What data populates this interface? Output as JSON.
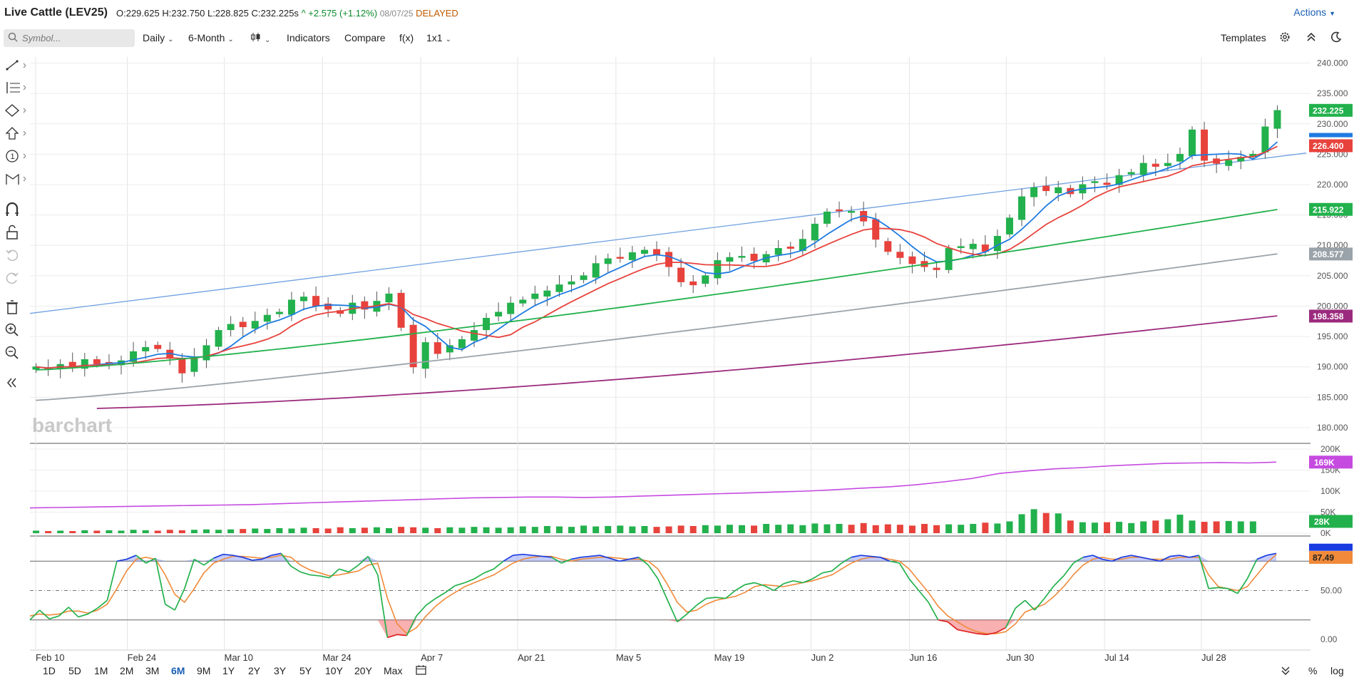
{
  "header": {
    "title": "Live Cattle (LEV25)",
    "open": "O:229.625",
    "high": "H:232.750",
    "low": "L:228.825",
    "close": "C:232.225s",
    "change": "^ +2.575 (+1.12%)",
    "date": "08/07/25",
    "status": "DELAYED",
    "actions_label": "Actions"
  },
  "toolbar": {
    "search_placeholder": "Symbol...",
    "interval": "Daily",
    "range": "6-Month",
    "indicators": "Indicators",
    "compare": "Compare",
    "fx": "f(x)",
    "layout": "1x1",
    "templates": "Templates"
  },
  "watermark": "barchart",
  "chart_data": {
    "type": "candlestick",
    "x_labels": [
      "Feb 10",
      "Feb 24",
      "Mar 10",
      "Mar 24",
      "Apr 7",
      "Apr 21",
      "May 5",
      "May 19",
      "Jun 2",
      "Jun 16",
      "Jun 30",
      "Jul 14",
      "Jul 28"
    ],
    "price_axis": [
      "240.000",
      "235.000",
      "230.000",
      "225.000",
      "220.000",
      "215.000",
      "210.000",
      "205.000",
      "200.000",
      "195.000",
      "190.000",
      "185.000",
      "180.000"
    ],
    "price_ylim": [
      178,
      241
    ],
    "price_labels": [
      {
        "value": "232.225",
        "color": "#22b14c"
      },
      {
        "value": "226.400",
        "color": "#e8423c"
      },
      {
        "value": "215.922",
        "color": "#22b14c"
      },
      {
        "value": "208.577",
        "color": "#9aa3aa"
      },
      {
        "value": "198.358",
        "color": "#9b2a7d"
      }
    ],
    "closes": [
      190,
      189.6,
      190.4,
      190,
      191.2,
      190.5,
      190.7,
      191.0,
      192.5,
      193.2,
      193.0,
      191.4,
      189.0,
      191.5,
      193.5,
      196.0,
      197.0,
      196.6,
      197.5,
      198.5,
      199.0,
      201.0,
      201.5,
      200.0,
      199.5,
      198.8,
      200.5,
      199.5,
      200.8,
      202.0,
      196.5,
      190.0,
      194.0,
      192.2,
      193.5,
      194.5,
      196.0,
      198.0,
      199.0,
      200.5,
      201.0,
      202.0,
      202.5,
      203.5,
      204.0,
      205.0,
      207.0,
      207.8,
      208.0,
      208.8,
      209.2,
      208.5,
      206.5,
      204.0,
      203.5,
      205.0,
      207.5,
      208.0,
      208.2,
      207.5,
      208.5,
      209.5,
      209.5,
      211.0,
      213.5,
      215.5,
      215.7,
      215.6,
      214.0,
      211.0,
      209.0,
      208.0,
      207.0,
      206.5,
      206.0,
      209.5,
      209.8,
      210.2,
      209.0,
      211.5,
      214.5,
      218.0,
      219.5,
      219.0,
      219.5,
      218.5,
      220.0,
      220.5,
      220.0,
      221.5,
      222.0,
      223.5,
      223.0,
      223.5,
      225.0,
      229.0,
      224.0,
      223.5,
      224.0,
      224.5,
      225.0,
      229.5,
      232.2
    ],
    "ma_values": {
      "ma9_blue": "227.800",
      "ma18_red": "226.400",
      "ma50_green": "215.922",
      "ma100_grey": "208.577",
      "ma200_purple": "198.358"
    },
    "volume": {
      "axis": [
        "200K",
        "150K",
        "100K",
        "50K",
        "0K"
      ],
      "ylim": [
        0,
        200
      ],
      "oi_label": "169K",
      "vol_label": "28K",
      "open_interest": [
        60,
        61,
        62,
        63,
        64,
        65,
        66,
        67,
        68,
        70,
        72,
        74,
        76,
        78,
        80,
        82,
        84,
        85,
        86,
        86,
        85,
        86,
        88,
        90,
        92,
        94,
        96,
        98,
        100,
        103,
        107,
        110,
        115,
        122,
        130,
        142,
        148,
        153,
        156,
        160,
        163,
        166,
        167,
        168,
        167,
        169
      ],
      "volumes": [
        6,
        5,
        6,
        5,
        7,
        6,
        7,
        6,
        8,
        7,
        6,
        8,
        7,
        8,
        9,
        8,
        9,
        10,
        11,
        10,
        12,
        11,
        13,
        12,
        11,
        14,
        12,
        13,
        14,
        12,
        15,
        14,
        13,
        12,
        14,
        13,
        15,
        14,
        13,
        14,
        16,
        15,
        17,
        16,
        15,
        18,
        16,
        17,
        18,
        16,
        17,
        15,
        16,
        18,
        17,
        19,
        18,
        20,
        19,
        18,
        22,
        20,
        21,
        19,
        23,
        21,
        22,
        20,
        24,
        19,
        21,
        20,
        18,
        22,
        19,
        21,
        20,
        22,
        25,
        23,
        28,
        45,
        57,
        48,
        47,
        30,
        26,
        25,
        26,
        27,
        24,
        28,
        30,
        33,
        44,
        30,
        27,
        28,
        29,
        28,
        28
      ]
    },
    "stochastic": {
      "axis": [
        "50.00",
        "0.00"
      ],
      "ylim": [
        -5,
        105
      ],
      "k_label": "88.43",
      "d_label": "87.49",
      "upper": 80,
      "lower": 20,
      "k": [
        20,
        30,
        21,
        24,
        33,
        23,
        26,
        32,
        40,
        80,
        82,
        86,
        78,
        83,
        36,
        30,
        52,
        82,
        76,
        83,
        87,
        86,
        84,
        81,
        82,
        86,
        88,
        75,
        69,
        66,
        65,
        63,
        72,
        69,
        76,
        85,
        66,
        2,
        5,
        4,
        24,
        35,
        42,
        48,
        55,
        58,
        62,
        68,
        72,
        80,
        86,
        87,
        86,
        85,
        84,
        78,
        82,
        84,
        85,
        86,
        83,
        80,
        82,
        84,
        76,
        62,
        40,
        18,
        26,
        35,
        42,
        43,
        42,
        50,
        56,
        58,
        55,
        50,
        57,
        60,
        58,
        62,
        68,
        70,
        78,
        84,
        86,
        85,
        84,
        80,
        78,
        62,
        50,
        38,
        20,
        18,
        10,
        8,
        6,
        5,
        7,
        12,
        32,
        40,
        30,
        42,
        55,
        65,
        78,
        84,
        86,
        82,
        80,
        84,
        86,
        84,
        82,
        80,
        85,
        86,
        84,
        86,
        52,
        53,
        52,
        47,
        62,
        82,
        86,
        88
      ],
      "d": [
        24,
        26,
        25,
        26,
        29,
        29,
        27,
        30,
        36,
        52,
        70,
        82,
        84,
        82,
        66,
        46,
        38,
        52,
        68,
        78,
        82,
        85,
        85,
        84,
        83,
        84,
        86,
        84,
        76,
        71,
        68,
        65,
        66,
        68,
        70,
        76,
        78,
        42,
        16,
        6,
        12,
        24,
        34,
        42,
        48,
        54,
        58,
        62,
        66,
        72,
        78,
        82,
        84,
        85,
        85,
        82,
        80,
        82,
        83,
        84,
        84,
        83,
        82,
        82,
        80,
        72,
        56,
        38,
        28,
        30,
        36,
        40,
        42,
        44,
        48,
        54,
        56,
        55,
        54,
        56,
        58,
        60,
        63,
        66,
        72,
        78,
        82,
        84,
        84,
        82,
        80,
        72,
        60,
        48,
        34,
        24,
        18,
        12,
        8,
        6,
        6,
        8,
        16,
        28,
        32,
        36,
        44,
        54,
        66,
        76,
        82,
        84,
        82,
        82,
        84,
        84,
        82,
        82,
        82,
        84,
        84,
        84,
        66,
        54,
        52,
        50,
        54,
        66,
        78,
        87
      ]
    }
  },
  "left_tools": [
    "trendline-tool-icon",
    "fib-tool-icon",
    "shape-tool-icon",
    "arrow-tool-icon",
    "counter-tool-icon",
    "pattern-tool-icon",
    "magnet-icon",
    "unlock-icon",
    "undo-icon",
    "redo-icon",
    "trash-icon",
    "zoom-in-icon",
    "zoom-out-icon",
    "collapse-icon"
  ],
  "bottom_ranges": [
    "1D",
    "5D",
    "1M",
    "2M",
    "3M",
    "6M",
    "9M",
    "1Y",
    "2Y",
    "3Y",
    "5Y",
    "10Y",
    "20Y",
    "Max"
  ],
  "selected_range": "6M",
  "bottom_right": {
    "percent": "%",
    "log": "log"
  },
  "colors": {
    "up": "#22b14c",
    "down": "#e8423c",
    "ma9": "#1e7be0",
    "ma18": "#e8423c",
    "ma50": "#22b14c",
    "ma100": "#9aa3aa",
    "ma200": "#9b2a7d",
    "trend": "#6fa0e0",
    "oi": "#c54ae0",
    "stoch_k": "#22b14c",
    "stoch_d": "#f08a3a"
  }
}
